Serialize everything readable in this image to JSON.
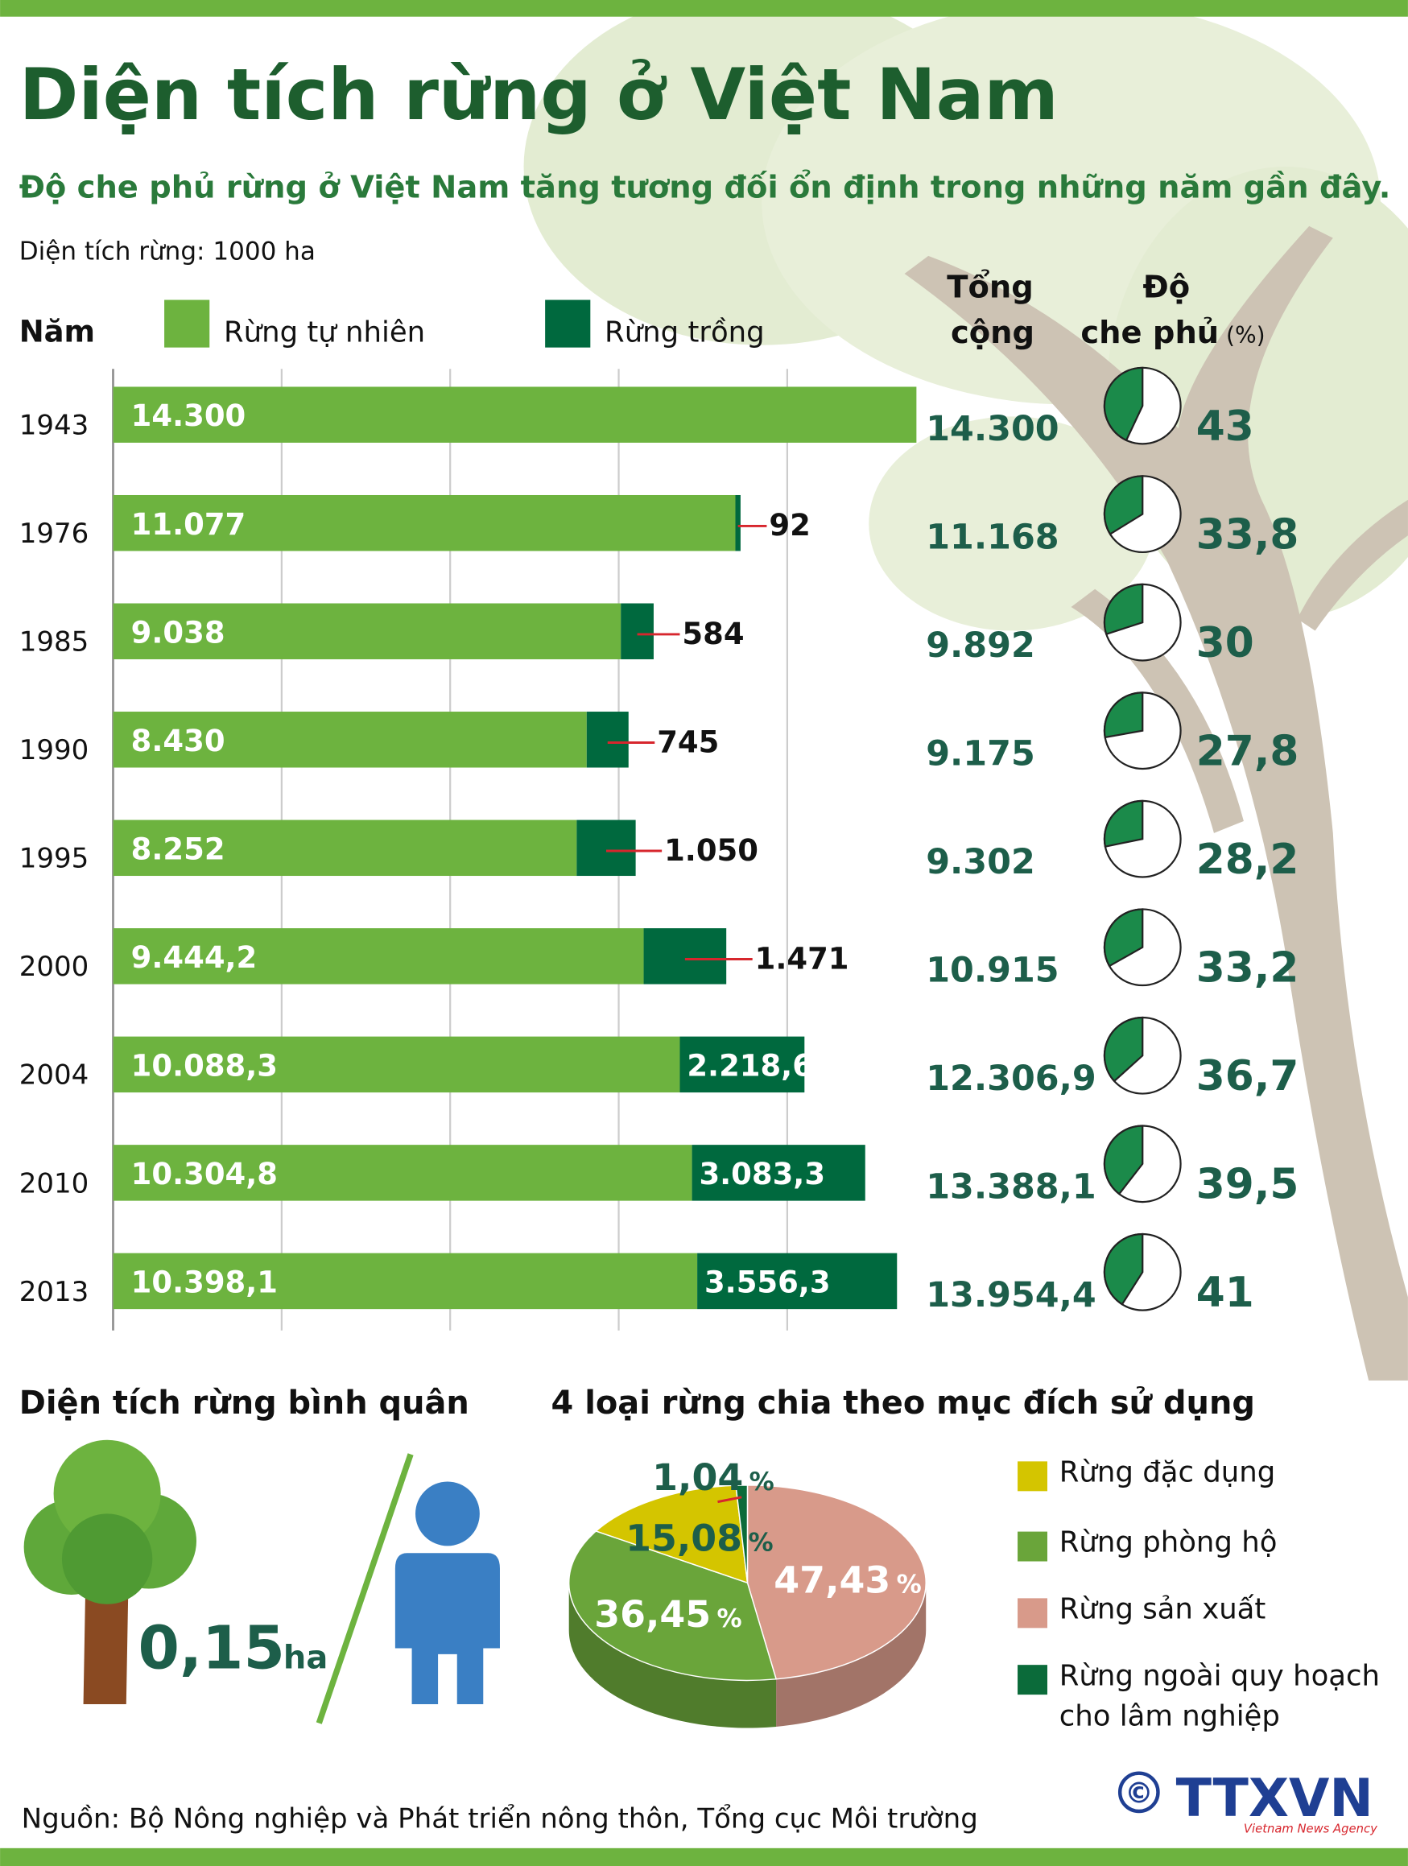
{
  "title": "Diện tích rừng ở Việt Nam",
  "subtitle": "Độ che phủ rừng ở Việt Nam tăng tương đối ổn định trong những năm gần đây.",
  "chart_data": [
    {
      "type": "bar",
      "orientation": "horizontal",
      "stacked": true,
      "unit_label": "Diện tích rừng: 1000 ha",
      "category_header": "Năm",
      "categories": [
        "1943",
        "1976",
        "1985",
        "1990",
        "1995",
        "2000",
        "2004",
        "2010",
        "2013"
      ],
      "series": [
        {
          "name": "Rừng tự nhiên",
          "color": "#6db33f",
          "values": [
            14300,
            11077,
            9038,
            8430,
            8252,
            9444.2,
            10088.3,
            10304.8,
            10398.1
          ],
          "value_labels": [
            "14.300",
            "11.077",
            "9.038",
            "8.430",
            "8.252",
            "9.444,2",
            "10.088,3",
            "10.304,8",
            "10.398,1"
          ]
        },
        {
          "name": "Rừng trồng",
          "color": "#00693e",
          "values": [
            null,
            92,
            584,
            745,
            1050,
            1471,
            2218.6,
            3083.3,
            3556.3
          ],
          "value_labels": [
            null,
            "92",
            "584",
            "745",
            "1.050",
            "1.471",
            "2.218,6",
            "3.083,3",
            "3.556,3"
          ]
        }
      ],
      "xlim": [
        0,
        15000
      ],
      "xticks": [
        0,
        3000,
        6000,
        9000,
        12000
      ],
      "grid": true,
      "totals": {
        "header": [
          "Tổng",
          "cộng"
        ],
        "values": [
          14300,
          11168,
          9892,
          9175,
          9302,
          10915,
          12306.9,
          13388.1,
          13954.4
        ],
        "value_labels": [
          "14.300",
          "11.168",
          "9.892",
          "9.175",
          "9.302",
          "10.915",
          "12.306,9",
          "13.388,1",
          "13.954,4"
        ]
      },
      "coverage": {
        "header": [
          "Độ",
          "che phủ"
        ],
        "unit": "(%)",
        "color": "#1b8a4a",
        "values": [
          43,
          33.8,
          30,
          27.8,
          28.2,
          33.2,
          36.7,
          39.5,
          41
        ],
        "value_labels": [
          "43",
          "33,8",
          "30",
          "27,8",
          "28,2",
          "33,2",
          "36,7",
          "39,5",
          "41"
        ]
      }
    },
    {
      "type": "pie",
      "title": "4 loại rừng chia theo mục đích sử dụng",
      "unit": "%",
      "categories": [
        "Rừng đặc dụng",
        "Rừng phòng hộ",
        "Rừng sản xuất",
        "Rừng ngoài quy hoạch cho lâm nghiệp"
      ],
      "values": [
        15.08,
        36.45,
        47.43,
        1.04
      ],
      "value_labels": [
        "15,08",
        "36,45",
        "47,43",
        "1,04"
      ],
      "colors": [
        "#d4c500",
        "#6aa53a",
        "#d89a8a",
        "#0b6b3a"
      ]
    }
  ],
  "per_capita": {
    "title": "Diện tích rừng bình quân",
    "value": 0.15,
    "value_label": "0,15",
    "unit": "ha"
  },
  "source": "Nguồn: Bộ Nông nghiệp và Phát triển nông thôn, Tổng cục Môi trường",
  "logo": {
    "symbol": "©",
    "text": "TTXVN",
    "tagline": "Vietnam News Agency"
  }
}
